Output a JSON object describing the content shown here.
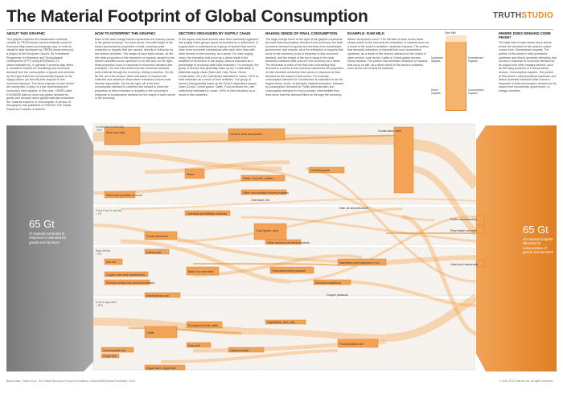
{
  "header": {
    "title": "The Material Footprint of Global Consumption",
    "brand_part1": "TRUTH",
    "brand_part2": "STUDIO"
  },
  "columns": [
    {
      "heading": "About this graphic",
      "body": "This graphic explores the visualization methods created by TRUTHstudio (www.truthstudio.com) for Economy Map (www.economymap.org), in order to visualize data developed by CREEA (www.creea.eu), a project of the European Union's 7th Framework Programme for Research and Technological Development (FP7) using EXIOBASE 2.1 (www.exiobase.eu). In general, Economy Map offers a consistent method for visualizing how economic demand from the consumption of goods and services by the eight drives the environmental impacts in the supply chains (on the left) that respond to this economic demand. The direct impacts of each sector are connected, in grey, to a bar representing the economy's total impacts. In this case, CREEA used EXIOBASE data to show how global demand for goods and services drove global materials extraction, the 'material footprint' of consumption. A version of this graphic was published in CREEA's The Global Resource Footprint of Nations."
    },
    {
      "heading": "How to interpret the graphic",
      "body": "Each of the dark orange blocks represents one industry sector in the global economy. For each sector, the total height of the block represents the proportion of total, economy-wide extraction or impacts that are caused, directly or indirectly, by the sector's activities. The shape of each block shows, on the left, what proportion of the extraction or impacts caused by the sector's activities occur upstream or on site and, on the right, what proportion occur in response to economic demand (see example). The flow lines show how the economic demand pulls material through the economy, driving extraction. On the far left, all of the sectors' direct extraction or impacts are collected and ranked to show where extraction occurs most directly responsible. On the far right, all of the final consumption demand is collected and ranked to show the proportion of total extraction or impacts in the economy in response to consumption demand for the output of each sector in the economy."
    },
    {
      "heading": "Sectors organized by supply chain",
      "body": "In the layout, individual sectors have been manually organized into supply chain groups (each surrounded by a dotted line). A supply chain is understood as a group of sectors that tend to have more economic transactions with each other than with other sectors in the economy, as a whole. For each supply chain, the extraction that occur as a direct result of the activities of all sectors in the supply chain is indicated as a percentage of economy-wide total extraction. For example, the group of sectors that generally make up the Construction & Materials supply chain (Sand and Clay, Wood, Stone, Construction, etc.) are collectively estimated to cause >30% of total extraction as a result of their activities. The group of sectors that generally make up the Food & Agriculture supply chain (Crops, Cereal grains, Cattle, Food products etc.) are collectively estimated to cause >20% of total extraction as a result of their activities."
    },
    {
      "heading": "Making sense of final consumption",
      "body": "The large orange block at the right of the graphic represents the total final consumption demand in the economy: the total economic demand for goods and services from households, government, and exports, all of the extraction or impacts that occur in the economy occur in response to this economic demand, and the height of the bar is equal to the total domestic extraction that occurs in the economy as a result. The thickness of each of the flow lines connecting final demand to a sector in the economy represents the proportion of total domestic extraction that occurs in response to final demand for the output of that sector. For example, consumption demand for Construction is estimated to be the largest driver, by far, of domestic material extraction, followed by consumption demand for Public administration and consumption demand for food products. Intermediate flow lines show how this demand filters up through the economy."
    },
    {
      "heading": "Example: Raw Milk",
      "body": "Where do impacts occur? The left side of each sector block shows where in the economy the extraction or impacts occur as a result of the sector's activities. Upstream impacts: The portion that domestic extraction or impacts that occur somewhere upstream, as a result of this sector's demand for the output of other sectors, such as the Cattle or Cereal grains sectors. Direct impacts: The portion that domestic extraction or impacts that occur on site, as a direct result of the sector's activities, such as the use of land for livestock."
    },
    {
      "heading": "Where does demand come from?",
      "body": "The right side of each sector block shows where the demand for the sector's output comes from. Downstream impacts: The portion of this sector's total (combined upstream and direct) domestic extraction that occurs in response to economic demand for its output from other industry sectors, such as the Dairy products or Food products sectors. Consumption impacts: The portion of this sector's total (combined upstream and direct) domestic extraction that occurs in response to final consumption demand for its output from households, government, or foreign countries."
    }
  ],
  "example": {
    "top_label": "Raw Milk",
    "labels": [
      "Upstream impacts",
      "Direct impacts",
      "Downstream impacts",
      "Consumption impacts"
    ]
  },
  "diagram": {
    "left_total": "65 Gt",
    "left_caption": "of material extracted in response to demand for goods and services",
    "right_total": "65 Gt",
    "right_caption": "of material footprint allocated to consumption of goods and services",
    "groups": [
      "Construction & Materials",
      "Fossil Fuels & Industry",
      "Basic Metals",
      "Food & Agriculture"
    ],
    "group_pcts": [
      ">30%",
      "≈ 1%",
      "≈ 3%",
      "> 20%"
    ],
    "sectors": [
      "Sand and clay",
      "Wood and products of wood",
      "Stone",
      "Cement, lime and plaster",
      "Construction work",
      "Glass, concrete, plaster, ...",
      "Ceramic goods",
      "Other non-metallic mineral products",
      "Chemical and fertilizer minerals",
      "Crude petroleum",
      "Natural gas",
      "Iron ore",
      "Copper ores and concentrates",
      "Precious metal ores and concentrates",
      "Electricity by coal",
      "Basic iron and steel",
      "Coal, lignite, peat",
      "Other non-ferrous metal products",
      "Fabricated metal products",
      "Machinery and equipment n.e.c.",
      "Electrical machinery",
      "Public administration",
      "Real estate services",
      "Hotel and restaurants",
      "Cattle",
      "Products of meat cattle",
      "Raw milk",
      "Dairy products",
      "Food products nec",
      "Cereal grains nec",
      "Crops nec",
      "Vegetables, fruit, nuts",
      "Sugar cane, sugar beet",
      "Copper products",
      "Chemicals nec",
      "Gas, oil and petroleum"
    ]
  },
  "footer": {
    "left": "Based data: Tukker et al., The Global Resource Footprint of Nations. Leiden/Delft/Vienna/Trondheim, 2014.",
    "right": "© 2016 TRUTHstudio Inc. All rights reserved."
  },
  "colors": {
    "orange_dark": "#e98a2c",
    "orange_light": "#f5b46b",
    "orange_pale": "#fbd3a2",
    "gray_bar": "#8c8c8c",
    "group_fill": "#f7f4ef"
  }
}
